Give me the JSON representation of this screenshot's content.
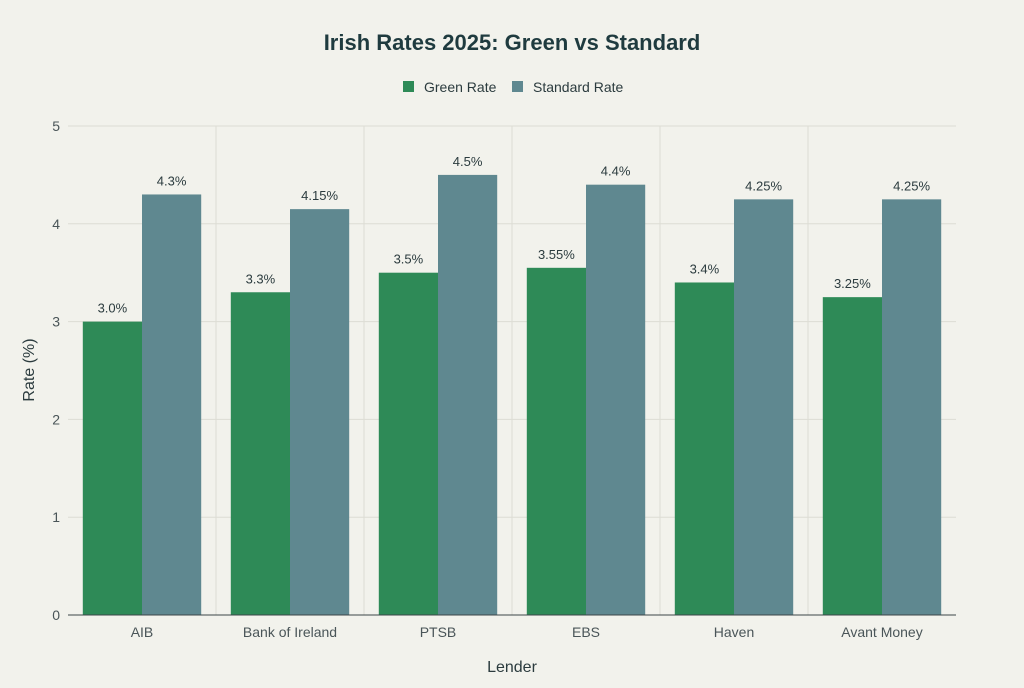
{
  "chart_data": {
    "type": "bar",
    "title": "Irish Rates 2025: Green vs Standard",
    "xlabel": "Lender",
    "ylabel": "Rate (%)",
    "categories": [
      "AIB",
      "Bank of Ireland",
      "PTSB",
      "EBS",
      "Haven",
      "Avant Money"
    ],
    "series": [
      {
        "name": "Green Rate",
        "color": "#2e8a57",
        "values": [
          3.0,
          3.3,
          3.5,
          3.55,
          3.4,
          3.25
        ],
        "labels": [
          "3.0%",
          "3.3%",
          "3.5%",
          "3.55%",
          "3.4%",
          "3.25%"
        ]
      },
      {
        "name": "Standard Rate",
        "color": "#5f8890",
        "values": [
          4.3,
          4.15,
          4.5,
          4.4,
          4.25,
          4.25
        ],
        "labels": [
          "4.3%",
          "4.15%",
          "4.5%",
          "4.4%",
          "4.25%",
          "4.25%"
        ]
      }
    ],
    "ylim": [
      0,
      5
    ],
    "yticks": [
      "0",
      "1",
      "2",
      "3",
      "4",
      "5"
    ],
    "grid": true,
    "legend_position": "top-center"
  }
}
